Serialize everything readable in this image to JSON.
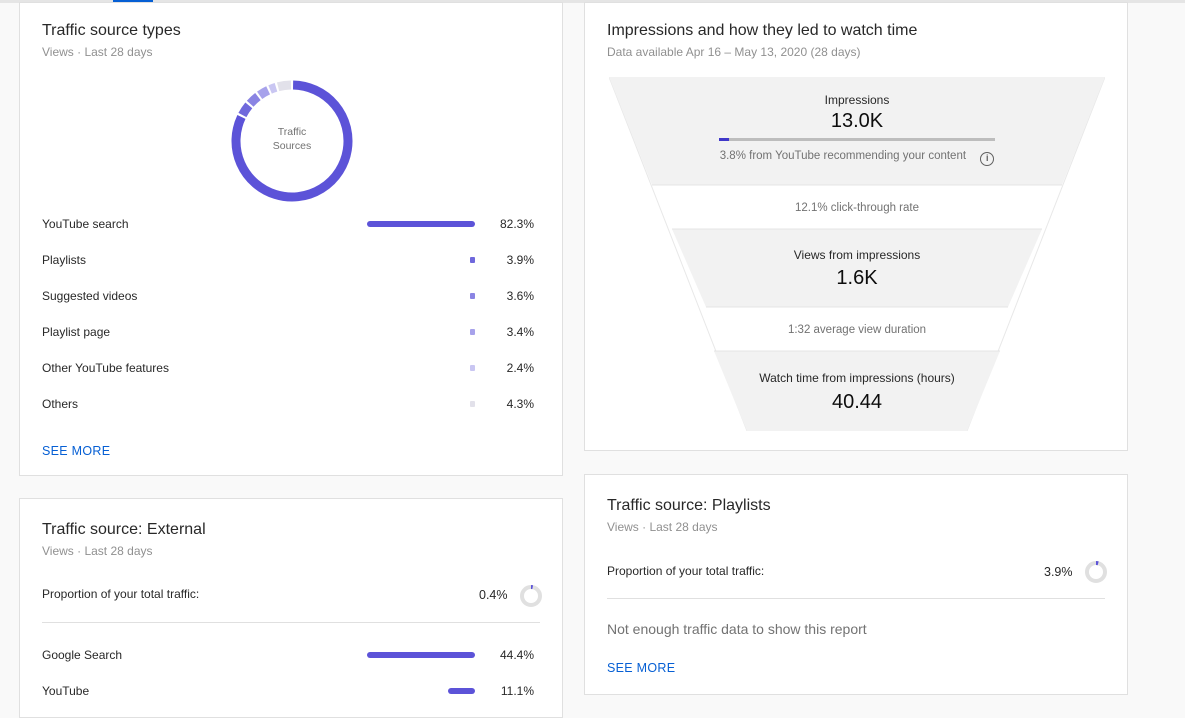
{
  "colors": {
    "accent": "#5c53d8",
    "link": "#065fd4",
    "ring_track": "#e0e0e0"
  },
  "traffic_types": {
    "title": "Traffic source types",
    "subtitle": "Views · Last 28 days",
    "donut_label_line1": "Traffic",
    "donut_label_line2": "Sources",
    "rows": [
      {
        "label": "YouTube search",
        "value": 82.3,
        "pct": "82.3%",
        "color": "#5c53d8"
      },
      {
        "label": "Playlists",
        "value": 3.9,
        "pct": "3.9%",
        "color": "#6f68dc"
      },
      {
        "label": "Suggested videos",
        "value": 3.6,
        "pct": "3.6%",
        "color": "#8a84e3"
      },
      {
        "label": "Playlist page",
        "value": 3.4,
        "pct": "3.4%",
        "color": "#a7a2eb"
      },
      {
        "label": "Other YouTube features",
        "value": 2.4,
        "pct": "2.4%",
        "color": "#c9c6f2"
      },
      {
        "label": "Others",
        "value": 4.3,
        "pct": "4.3%",
        "color": "#e2e1ea"
      }
    ],
    "see_more": "SEE MORE"
  },
  "impressions": {
    "title": "Impressions and how they led to watch time",
    "subtitle": "Data available Apr 16 – May 13, 2020 (28 days)",
    "impressions_label": "Impressions",
    "impressions_value": "13.0K",
    "recommend_fraction": 0.038,
    "recommend_text": "3.8% from YouTube recommending your content",
    "ctr_text": "12.1% click-through rate",
    "views_label": "Views from impressions",
    "views_value": "1.6K",
    "avd_text": "1:32 average view duration",
    "watch_label": "Watch time from impressions (hours)",
    "watch_value": "40.44"
  },
  "external": {
    "title": "Traffic source: External",
    "subtitle": "Views · Last 28 days",
    "proportion_label": "Proportion of your total traffic:",
    "proportion_value": 0.4,
    "proportion_pct": "0.4%",
    "rows": [
      {
        "label": "Google Search",
        "value": 44.4,
        "pct": "44.4%"
      },
      {
        "label": "YouTube",
        "value": 11.1,
        "pct": "11.1%"
      }
    ]
  },
  "playlists": {
    "title": "Traffic source: Playlists",
    "subtitle": "Views · Last 28 days",
    "proportion_label": "Proportion of your total traffic:",
    "proportion_value": 3.9,
    "proportion_pct": "3.9%",
    "empty_text": "Not enough traffic data to show this report",
    "see_more": "SEE MORE"
  }
}
